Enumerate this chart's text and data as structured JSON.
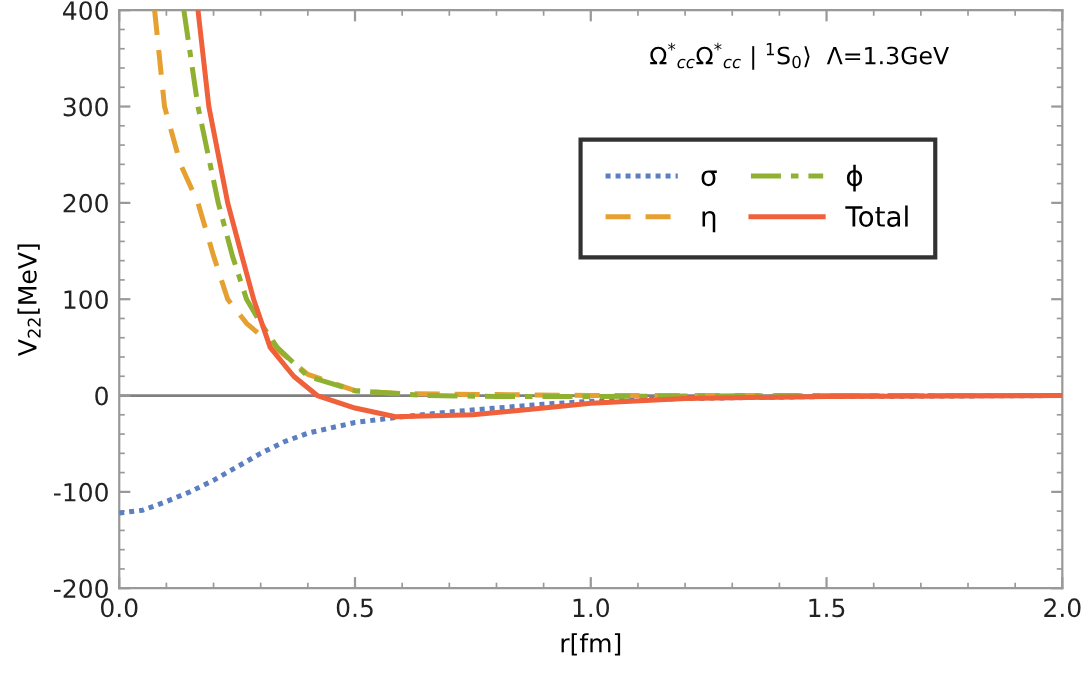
{
  "chart_data": {
    "type": "line",
    "xlabel": "r[fm]",
    "ylabel": "V$_{22}$[MeV]",
    "annotations": [
      "Ω$^{*}$$_{cc}$Ω$^{*}$$_{cc}$ | $^{1}$S$_{0}$⟩  Λ=1.3GeV"
    ],
    "xlim": [
      0,
      2
    ],
    "xticks": [
      {
        "value": 0,
        "label": "0.0"
      },
      0.5,
      {
        "value": 1,
        "label": "1.0"
      },
      1.5,
      {
        "value": 2,
        "label": "2.0"
      }
    ],
    "ylim": [
      -200,
      400
    ],
    "yticks": [
      -200,
      -100,
      0,
      100,
      200,
      300,
      400
    ],
    "ref_lines": [
      {
        "axis": "y",
        "value": 0,
        "color": "#808080"
      }
    ],
    "legend": "top right",
    "grid": false,
    "series": [
      {
        "name": "σ",
        "color": "#5b7fbf",
        "line_style": "dotted",
        "x": [
          0,
          0.05,
          0.1,
          0.15,
          0.2,
          0.25,
          0.3,
          0.35,
          0.4,
          0.5,
          0.6,
          0.7,
          0.8,
          0.9,
          1.0,
          1.2,
          1.5,
          2.0
        ],
        "values": [
          -122,
          -119,
          -110,
          -100,
          -88,
          -74,
          -60,
          -48,
          -39,
          -28,
          -22,
          -17,
          -13,
          -9,
          -6,
          -3,
          -1,
          0
        ]
      },
      {
        "name": "η",
        "color": "#e5a030",
        "line_style": "dashed",
        "x": [
          0.075,
          0.096,
          0.13,
          0.167,
          0.2,
          0.23,
          0.27,
          0.32,
          0.4,
          0.5,
          0.6,
          0.8,
          1.0,
          1.5,
          2.0
        ],
        "values": [
          400,
          300,
          240,
          200,
          145,
          100,
          75,
          54,
          22,
          5,
          2,
          1,
          0,
          0,
          0
        ]
      },
      {
        "name": "ϕ",
        "color": "#8fb030",
        "line_style": "dashdot",
        "x": [
          0.137,
          0.167,
          0.21,
          0.24,
          0.27,
          0.3,
          0.335,
          0.4,
          0.5,
          0.65,
          0.8,
          1.0,
          1.5,
          2.0
        ],
        "values": [
          400,
          300,
          200,
          145,
          100,
          75,
          50,
          20,
          5,
          0,
          -1,
          -1,
          0,
          0
        ]
      },
      {
        "name": "Total",
        "color": "#f0603a",
        "line_style": "solid",
        "x": [
          0.167,
          0.19,
          0.23,
          0.26,
          0.285,
          0.32,
          0.37,
          0.42,
          0.5,
          0.586,
          0.75,
          0.9,
          1.0,
          1.2,
          1.5,
          2.0
        ],
        "values": [
          400,
          300,
          200,
          145,
          100,
          50,
          20,
          0,
          -13,
          -22,
          -20,
          -13,
          -8,
          -3,
          -1,
          0
        ]
      }
    ]
  }
}
